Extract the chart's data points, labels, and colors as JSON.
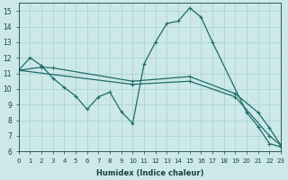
{
  "xlabel": "Humidex (Indice chaleur)",
  "xlim": [
    0,
    23
  ],
  "ylim": [
    6,
    15.5
  ],
  "yticks": [
    6,
    7,
    8,
    9,
    10,
    11,
    12,
    13,
    14,
    15
  ],
  "xticks": [
    0,
    1,
    2,
    3,
    4,
    5,
    6,
    7,
    8,
    9,
    10,
    11,
    12,
    13,
    14,
    15,
    16,
    17,
    18,
    19,
    20,
    21,
    22,
    23
  ],
  "bg_color": "#cce8e8",
  "grid_color": "#aacfcf",
  "line_color": "#1e6b6b",
  "series": {
    "volatile": {
      "x": [
        0,
        1,
        2,
        3,
        4,
        5,
        6,
        7,
        8,
        9,
        10,
        11,
        12,
        13,
        14,
        15,
        16,
        17,
        20,
        21,
        22,
        23
      ],
      "y": [
        11.2,
        12.0,
        11.5,
        10.7,
        10.1,
        9.55,
        8.7,
        9.5,
        9.8,
        8.55,
        7.8,
        11.6,
        13.0,
        14.2,
        14.35,
        15.2,
        14.6,
        13.0,
        8.5,
        7.6,
        6.5,
        6.3
      ]
    },
    "medium": {
      "x": [
        0,
        2,
        3,
        10,
        15,
        19,
        21,
        22,
        23
      ],
      "y": [
        11.2,
        11.4,
        11.35,
        10.5,
        10.8,
        9.7,
        8.5,
        7.5,
        6.4
      ]
    },
    "gentle": {
      "x": [
        0,
        10,
        15,
        19,
        22,
        23
      ],
      "y": [
        11.2,
        10.3,
        10.5,
        9.5,
        7.0,
        6.4
      ]
    }
  }
}
